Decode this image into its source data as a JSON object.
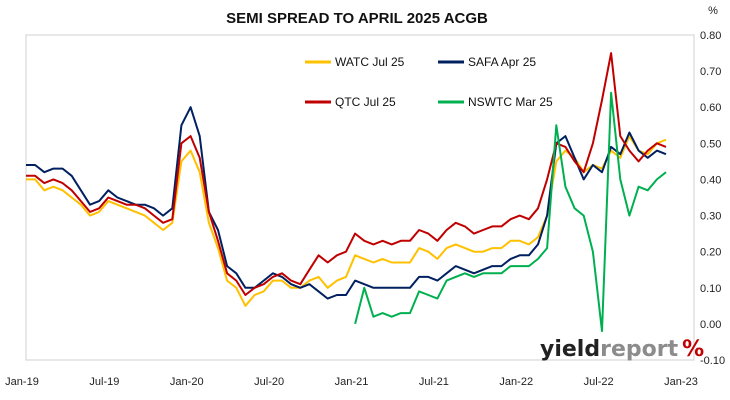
{
  "chart_data": {
    "type": "line",
    "title": "SEMI SPREAD TO APRIL 2025 ACGB",
    "y_unit": "%",
    "xlabel": "",
    "ylabel": "",
    "ylim": [
      -0.1,
      0.8
    ],
    "y_ticks": [
      "-0.10",
      "0.00",
      "0.10",
      "0.20",
      "0.30",
      "0.40",
      "0.50",
      "0.60",
      "0.70",
      "0.80"
    ],
    "x_ticks": [
      "Jan-19",
      "Jul-19",
      "Jan-20",
      "Jul-20",
      "Jan-21",
      "Jul-21",
      "Jan-22",
      "Jul-22",
      "Jan-23"
    ],
    "grid": false,
    "legend_position": "top-center",
    "series": [
      {
        "name": "WATC Jul 25",
        "color": "#FFC000",
        "values": [
          [
            0,
            0.4
          ],
          [
            1,
            0.4
          ],
          [
            2,
            0.37
          ],
          [
            3,
            0.38
          ],
          [
            4,
            0.37
          ],
          [
            5,
            0.35
          ],
          [
            6,
            0.33
          ],
          [
            7,
            0.3
          ],
          [
            8,
            0.31
          ],
          [
            9,
            0.34
          ],
          [
            10,
            0.33
          ],
          [
            11,
            0.32
          ],
          [
            12,
            0.31
          ],
          [
            13,
            0.3
          ],
          [
            14,
            0.28
          ],
          [
            15,
            0.26
          ],
          [
            16,
            0.28
          ],
          [
            17,
            0.45
          ],
          [
            18,
            0.48
          ],
          [
            19,
            0.42
          ],
          [
            20,
            0.28
          ],
          [
            21,
            0.21
          ],
          [
            22,
            0.12
          ],
          [
            23,
            0.1
          ],
          [
            24,
            0.05
          ],
          [
            25,
            0.08
          ],
          [
            26,
            0.09
          ],
          [
            27,
            0.12
          ],
          [
            28,
            0.12
          ],
          [
            29,
            0.1
          ],
          [
            30,
            0.1
          ],
          [
            31,
            0.12
          ],
          [
            32,
            0.13
          ],
          [
            33,
            0.1
          ],
          [
            34,
            0.12
          ],
          [
            35,
            0.13
          ],
          [
            36,
            0.19
          ],
          [
            37,
            0.18
          ],
          [
            38,
            0.17
          ],
          [
            39,
            0.18
          ],
          [
            40,
            0.17
          ],
          [
            41,
            0.17
          ],
          [
            42,
            0.17
          ],
          [
            43,
            0.21
          ],
          [
            44,
            0.2
          ],
          [
            45,
            0.18
          ],
          [
            46,
            0.21
          ],
          [
            47,
            0.22
          ],
          [
            48,
            0.21
          ],
          [
            49,
            0.2
          ],
          [
            50,
            0.2
          ],
          [
            51,
            0.21
          ],
          [
            52,
            0.21
          ],
          [
            53,
            0.23
          ],
          [
            54,
            0.23
          ],
          [
            55,
            0.22
          ],
          [
            56,
            0.24
          ],
          [
            57,
            0.3
          ],
          [
            58,
            0.45
          ],
          [
            59,
            0.48
          ],
          [
            60,
            0.46
          ],
          [
            61,
            0.42
          ],
          [
            62,
            0.44
          ],
          [
            63,
            0.43
          ],
          [
            64,
            0.48
          ],
          [
            65,
            0.46
          ],
          [
            66,
            0.52
          ],
          [
            67,
            0.48
          ],
          [
            68,
            0.47
          ],
          [
            69,
            0.5
          ],
          [
            70,
            0.51
          ]
        ]
      },
      {
        "name": "SAFA Apr 25",
        "color": "#002060",
        "values": [
          [
            0,
            0.44
          ],
          [
            1,
            0.44
          ],
          [
            2,
            0.42
          ],
          [
            3,
            0.43
          ],
          [
            4,
            0.43
          ],
          [
            5,
            0.41
          ],
          [
            6,
            0.37
          ],
          [
            7,
            0.33
          ],
          [
            8,
            0.34
          ],
          [
            9,
            0.37
          ],
          [
            10,
            0.35
          ],
          [
            11,
            0.34
          ],
          [
            12,
            0.33
          ],
          [
            13,
            0.33
          ],
          [
            14,
            0.32
          ],
          [
            15,
            0.3
          ],
          [
            16,
            0.32
          ],
          [
            17,
            0.55
          ],
          [
            18,
            0.6
          ],
          [
            19,
            0.52
          ],
          [
            20,
            0.31
          ],
          [
            21,
            0.26
          ],
          [
            22,
            0.16
          ],
          [
            23,
            0.14
          ],
          [
            24,
            0.1
          ],
          [
            25,
            0.1
          ],
          [
            26,
            0.12
          ],
          [
            27,
            0.14
          ],
          [
            28,
            0.13
          ],
          [
            29,
            0.11
          ],
          [
            30,
            0.1
          ],
          [
            31,
            0.11
          ],
          [
            32,
            0.09
          ],
          [
            33,
            0.07
          ],
          [
            34,
            0.08
          ],
          [
            35,
            0.08
          ],
          [
            36,
            0.12
          ],
          [
            37,
            0.11
          ],
          [
            38,
            0.1
          ],
          [
            39,
            0.1
          ],
          [
            40,
            0.1
          ],
          [
            41,
            0.1
          ],
          [
            42,
            0.1
          ],
          [
            43,
            0.13
          ],
          [
            44,
            0.13
          ],
          [
            45,
            0.12
          ],
          [
            46,
            0.14
          ],
          [
            47,
            0.16
          ],
          [
            48,
            0.15
          ],
          [
            49,
            0.14
          ],
          [
            50,
            0.15
          ],
          [
            51,
            0.16
          ],
          [
            52,
            0.16
          ],
          [
            53,
            0.18
          ],
          [
            54,
            0.19
          ],
          [
            55,
            0.19
          ],
          [
            56,
            0.22
          ],
          [
            57,
            0.3
          ],
          [
            58,
            0.5
          ],
          [
            59,
            0.52
          ],
          [
            60,
            0.46
          ],
          [
            61,
            0.4
          ],
          [
            62,
            0.44
          ],
          [
            63,
            0.42
          ],
          [
            64,
            0.49
          ],
          [
            65,
            0.47
          ],
          [
            66,
            0.53
          ],
          [
            67,
            0.48
          ],
          [
            68,
            0.46
          ],
          [
            69,
            0.48
          ],
          [
            70,
            0.47
          ]
        ]
      },
      {
        "name": "QTC Jul 25",
        "color": "#C00000",
        "values": [
          [
            0,
            0.41
          ],
          [
            1,
            0.41
          ],
          [
            2,
            0.39
          ],
          [
            3,
            0.4
          ],
          [
            4,
            0.39
          ],
          [
            5,
            0.37
          ],
          [
            6,
            0.34
          ],
          [
            7,
            0.31
          ],
          [
            8,
            0.32
          ],
          [
            9,
            0.35
          ],
          [
            10,
            0.34
          ],
          [
            11,
            0.33
          ],
          [
            12,
            0.33
          ],
          [
            13,
            0.32
          ],
          [
            14,
            0.3
          ],
          [
            15,
            0.28
          ],
          [
            16,
            0.29
          ],
          [
            17,
            0.5
          ],
          [
            18,
            0.52
          ],
          [
            19,
            0.46
          ],
          [
            20,
            0.31
          ],
          [
            21,
            0.23
          ],
          [
            22,
            0.14
          ],
          [
            23,
            0.12
          ],
          [
            24,
            0.08
          ],
          [
            25,
            0.1
          ],
          [
            26,
            0.11
          ],
          [
            27,
            0.13
          ],
          [
            28,
            0.14
          ],
          [
            29,
            0.12
          ],
          [
            30,
            0.11
          ],
          [
            31,
            0.15
          ],
          [
            32,
            0.19
          ],
          [
            33,
            0.17
          ],
          [
            34,
            0.19
          ],
          [
            35,
            0.2
          ],
          [
            36,
            0.25
          ],
          [
            37,
            0.23
          ],
          [
            38,
            0.22
          ],
          [
            39,
            0.23
          ],
          [
            40,
            0.22
          ],
          [
            41,
            0.23
          ],
          [
            42,
            0.23
          ],
          [
            43,
            0.26
          ],
          [
            44,
            0.25
          ],
          [
            45,
            0.23
          ],
          [
            46,
            0.26
          ],
          [
            47,
            0.28
          ],
          [
            48,
            0.27
          ],
          [
            49,
            0.25
          ],
          [
            50,
            0.26
          ],
          [
            51,
            0.27
          ],
          [
            52,
            0.27
          ],
          [
            53,
            0.29
          ],
          [
            54,
            0.3
          ],
          [
            55,
            0.29
          ],
          [
            56,
            0.32
          ],
          [
            57,
            0.4
          ],
          [
            58,
            0.5
          ],
          [
            59,
            0.49
          ],
          [
            60,
            0.45
          ],
          [
            61,
            0.42
          ],
          [
            62,
            0.5
          ],
          [
            63,
            0.62
          ],
          [
            64,
            0.75
          ],
          [
            65,
            0.52
          ],
          [
            66,
            0.48
          ],
          [
            67,
            0.45
          ],
          [
            68,
            0.48
          ],
          [
            69,
            0.5
          ],
          [
            70,
            0.49
          ]
        ]
      },
      {
        "name": "NSWTC Mar 25",
        "color": "#00B050",
        "values": [
          [
            36,
            0.0
          ],
          [
            37,
            0.1
          ],
          [
            38,
            0.02
          ],
          [
            39,
            0.03
          ],
          [
            40,
            0.02
          ],
          [
            41,
            0.03
          ],
          [
            42,
            0.03
          ],
          [
            43,
            0.09
          ],
          [
            44,
            0.08
          ],
          [
            45,
            0.07
          ],
          [
            46,
            0.12
          ],
          [
            47,
            0.13
          ],
          [
            48,
            0.14
          ],
          [
            49,
            0.13
          ],
          [
            50,
            0.14
          ],
          [
            51,
            0.14
          ],
          [
            52,
            0.14
          ],
          [
            53,
            0.16
          ],
          [
            54,
            0.16
          ],
          [
            55,
            0.16
          ],
          [
            56,
            0.18
          ],
          [
            57,
            0.21
          ],
          [
            58,
            0.55
          ],
          [
            59,
            0.38
          ],
          [
            60,
            0.32
          ],
          [
            61,
            0.3
          ],
          [
            62,
            0.2
          ],
          [
            63,
            -0.02
          ],
          [
            64,
            0.64
          ],
          [
            65,
            0.4
          ],
          [
            66,
            0.3
          ],
          [
            67,
            0.38
          ],
          [
            68,
            0.37
          ],
          [
            69,
            0.4
          ],
          [
            70,
            0.42
          ]
        ]
      }
    ]
  },
  "logo": {
    "part1": "yield",
    "part2": "report",
    "symbol": "%"
  }
}
